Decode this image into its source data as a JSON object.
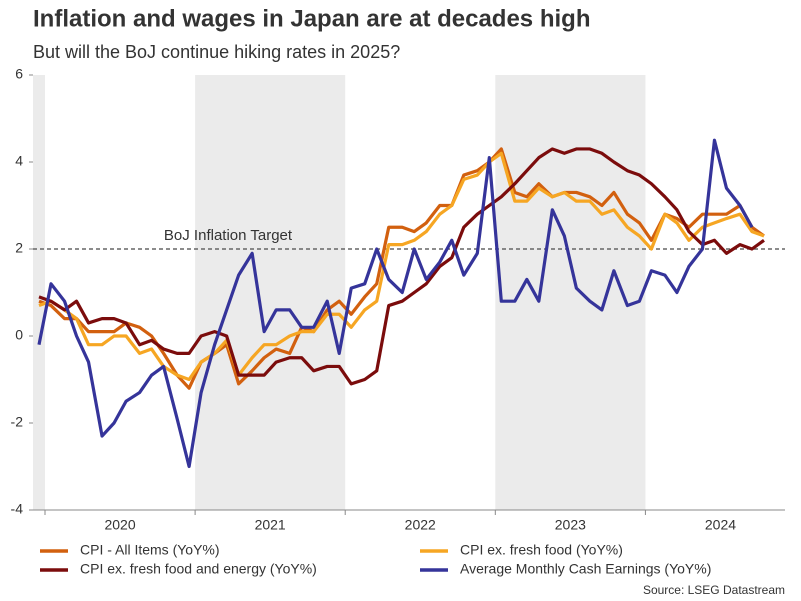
{
  "chart_data": {
    "type": "line",
    "title": "Inflation and wages in Japan are at decades high",
    "subtitle": "But will the BoJ continue hiking rates in 2025?",
    "source": "Source: LSEG Datastream",
    "target": {
      "value": 2,
      "label": "BoJ Inflation Target"
    },
    "x": [
      2019.96,
      2020.04,
      2020.13,
      2020.21,
      2020.29,
      2020.38,
      2020.46,
      2020.54,
      2020.63,
      2020.71,
      2020.79,
      2020.88,
      2020.96,
      2021.04,
      2021.13,
      2021.21,
      2021.29,
      2021.38,
      2021.46,
      2021.54,
      2021.63,
      2021.71,
      2021.79,
      2021.88,
      2021.96,
      2022.04,
      2022.13,
      2022.21,
      2022.29,
      2022.38,
      2022.46,
      2022.54,
      2022.63,
      2022.71,
      2022.79,
      2022.88,
      2022.96,
      2023.04,
      2023.13,
      2023.21,
      2023.29,
      2023.38,
      2023.46,
      2023.54,
      2023.63,
      2023.71,
      2023.79,
      2023.88,
      2023.96,
      2024.04,
      2024.13,
      2024.21,
      2024.29,
      2024.38,
      2024.46,
      2024.54,
      2024.63,
      2024.71,
      2024.79
    ],
    "xlim": [
      2019.92,
      2024.93
    ],
    "xticks": [
      {
        "value": 2020.5,
        "label": "2020"
      },
      {
        "value": 2021.5,
        "label": "2021"
      },
      {
        "value": 2022.5,
        "label": "2022"
      },
      {
        "value": 2023.5,
        "label": "2023"
      },
      {
        "value": 2024.5,
        "label": "2024"
      }
    ],
    "ylim": [
      -4,
      6
    ],
    "yticks": [
      -4,
      -2,
      0,
      2,
      4,
      6
    ],
    "series": [
      {
        "name": "CPI - All Items (YoY%)",
        "color": "#d2600f",
        "values": [
          0.8,
          0.7,
          0.4,
          0.4,
          0.1,
          0.1,
          0.1,
          0.3,
          0.2,
          0.0,
          -0.4,
          -0.9,
          -1.2,
          -0.6,
          -0.4,
          -0.2,
          -1.1,
          -0.8,
          -0.5,
          -0.3,
          -0.4,
          0.2,
          0.1,
          0.6,
          0.8,
          0.5,
          0.9,
          1.2,
          2.5,
          2.5,
          2.4,
          2.6,
          3.0,
          3.0,
          3.7,
          3.8,
          4.0,
          4.3,
          3.3,
          3.2,
          3.5,
          3.2,
          3.3,
          3.3,
          3.2,
          3.0,
          3.3,
          2.8,
          2.6,
          2.2,
          2.8,
          2.7,
          2.5,
          2.8,
          2.8,
          2.8,
          3.0,
          2.5,
          2.3
        ]
      },
      {
        "name": "CPI ex. fresh food (YoY%)",
        "color": "#f6a623",
        "values": [
          0.7,
          0.8,
          0.6,
          0.4,
          -0.2,
          -0.2,
          0.0,
          0.0,
          -0.4,
          -0.3,
          -0.7,
          -0.9,
          -1.0,
          -0.6,
          -0.4,
          -0.1,
          -0.9,
          -0.5,
          -0.2,
          -0.2,
          0.0,
          0.1,
          0.1,
          0.5,
          0.5,
          0.2,
          0.6,
          0.8,
          2.1,
          2.1,
          2.2,
          2.4,
          2.8,
          3.0,
          3.6,
          3.7,
          4.0,
          4.2,
          3.1,
          3.1,
          3.4,
          3.2,
          3.3,
          3.1,
          3.1,
          2.8,
          2.9,
          2.5,
          2.3,
          2.0,
          2.8,
          2.6,
          2.2,
          2.5,
          2.6,
          2.7,
          2.8,
          2.4,
          2.3
        ]
      },
      {
        "name": "CPI ex. fresh food and energy (YoY%)",
        "color": "#7b0c0c",
        "values": [
          0.9,
          0.8,
          0.6,
          0.8,
          0.3,
          0.4,
          0.4,
          0.3,
          -0.2,
          -0.1,
          -0.3,
          -0.4,
          -0.4,
          0.0,
          0.1,
          0.0,
          -0.9,
          -0.9,
          -0.9,
          -0.6,
          -0.5,
          -0.5,
          -0.8,
          -0.7,
          -0.7,
          -1.1,
          -1.0,
          -0.8,
          0.7,
          0.8,
          1.0,
          1.2,
          1.6,
          1.8,
          2.5,
          2.8,
          3.0,
          3.2,
          3.5,
          3.8,
          4.1,
          4.3,
          4.2,
          4.3,
          4.3,
          4.2,
          4.0,
          3.8,
          3.7,
          3.5,
          3.2,
          2.9,
          2.4,
          2.1,
          2.2,
          1.9,
          2.1,
          2.0,
          2.2
        ]
      },
      {
        "name": "Average Monthly Cash Earnings (YoY%)",
        "color": "#35349a",
        "values": [
          -0.2,
          1.2,
          0.8,
          0.0,
          -0.6,
          -2.3,
          -2.0,
          -1.5,
          -1.3,
          -0.9,
          -0.7,
          -1.9,
          -3.0,
          -1.3,
          -0.2,
          0.6,
          1.4,
          1.9,
          0.1,
          0.6,
          0.6,
          0.2,
          0.2,
          0.8,
          -0.4,
          1.1,
          1.2,
          2.0,
          1.3,
          1.0,
          2.0,
          1.3,
          1.7,
          2.2,
          1.4,
          1.9,
          4.1,
          0.8,
          0.8,
          1.3,
          0.8,
          2.9,
          2.3,
          1.1,
          0.8,
          0.6,
          1.5,
          0.7,
          0.8,
          1.5,
          1.4,
          1.0,
          1.6,
          2.0,
          4.5,
          3.4,
          3.0,
          2.5,
          null
        ]
      }
    ]
  }
}
